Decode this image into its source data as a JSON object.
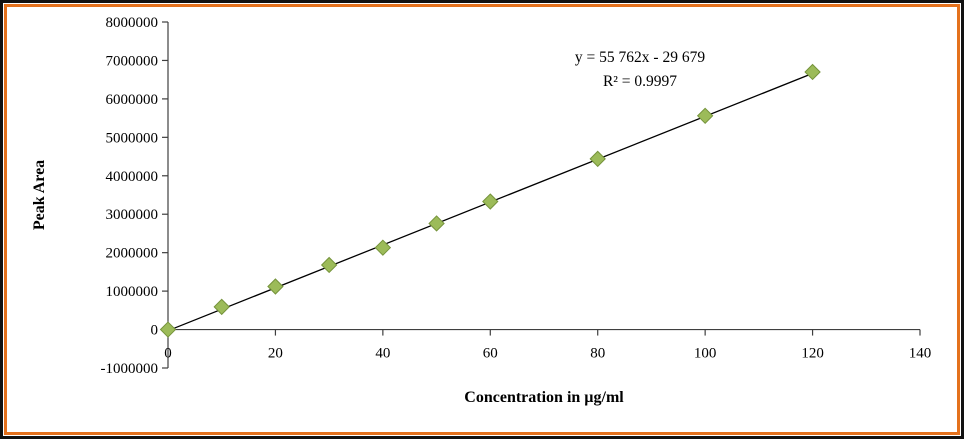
{
  "chart_data": {
    "type": "scatter",
    "title": "",
    "xlabel": "Concentration in µg/ml",
    "ylabel": "Peak Area",
    "x": [
      0,
      10,
      20,
      30,
      40,
      50,
      60,
      80,
      100,
      120
    ],
    "y": [
      0,
      590000,
      1120000,
      1680000,
      2130000,
      2760000,
      3330000,
      4440000,
      5560000,
      6700000
    ],
    "xlim": [
      0,
      140
    ],
    "ylim": [
      -1000000,
      8000000
    ],
    "x_ticks": [
      0,
      20,
      40,
      60,
      80,
      100,
      120,
      140
    ],
    "y_ticks": [
      -1000000,
      0,
      1000000,
      2000000,
      3000000,
      4000000,
      5000000,
      6000000,
      7000000,
      8000000
    ],
    "grid": false,
    "legend": false,
    "trendline": {
      "slope": 55762,
      "intercept": -29679,
      "x_start": 0,
      "x_end": 120.6,
      "color": "#000000"
    },
    "annotation": {
      "equation": "y = 55 762x - 29 679",
      "r_squared": "R² = 0.9997"
    },
    "marker": {
      "shape": "diamond",
      "fill": "#9CBB59",
      "stroke": "#75933B"
    },
    "colors": {
      "axis": "#3f3f3f",
      "frame_outer": "#111111",
      "frame_inner": "#E4711C",
      "plot_bg": "#ffffff"
    }
  }
}
